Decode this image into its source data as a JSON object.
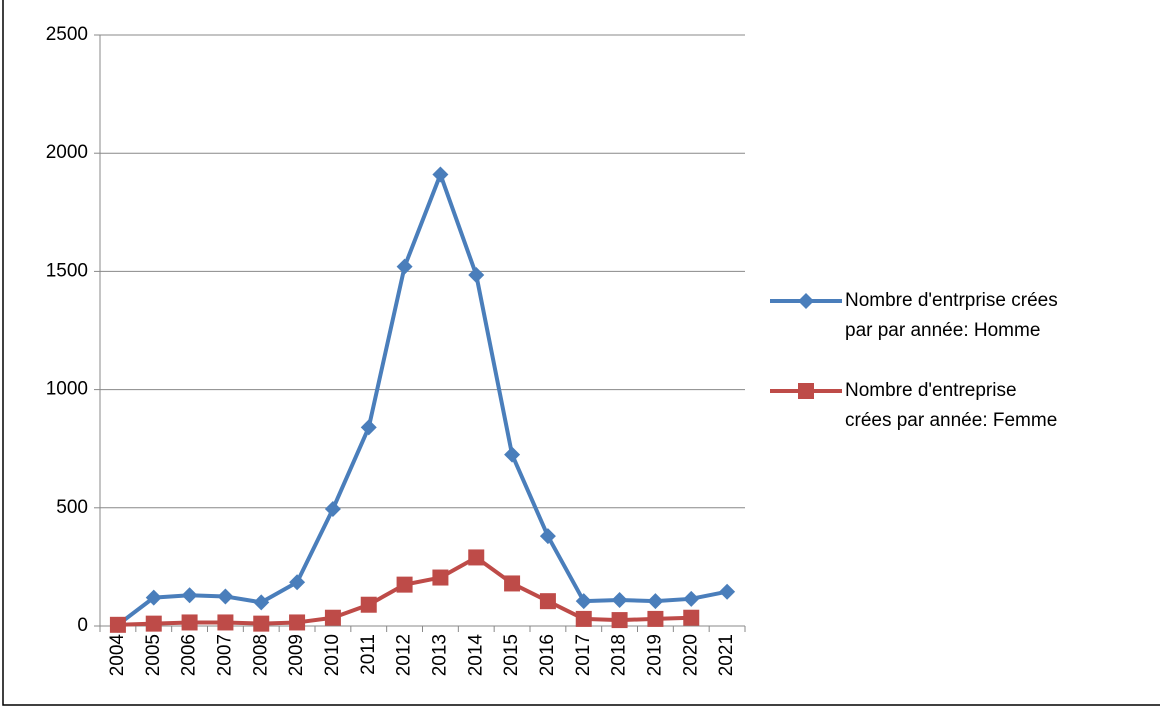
{
  "chart_data": {
    "type": "line",
    "categories": [
      "2004",
      "2005",
      "2006",
      "2007",
      "2008",
      "2009",
      "2010",
      "2011",
      "2012",
      "2013",
      "2014",
      "2015",
      "2016",
      "2017",
      "2018",
      "2019",
      "2020",
      "2021"
    ],
    "series": [
      {
        "name": "Nombre d'entrprise crées par par année: Homme",
        "color": "#4a7ebb",
        "marker": "diamond",
        "values": [
          5,
          120,
          130,
          125,
          100,
          185,
          495,
          840,
          1520,
          1910,
          1485,
          725,
          380,
          105,
          110,
          105,
          115,
          145
        ]
      },
      {
        "name": "Nombre d'entreprise crées par année: Femme",
        "color": "#be4b48",
        "marker": "square",
        "values": [
          5,
          10,
          15,
          15,
          10,
          15,
          35,
          90,
          175,
          205,
          290,
          180,
          105,
          30,
          25,
          30,
          35,
          null
        ]
      }
    ],
    "ylim": [
      0,
      2500
    ],
    "yticks": [
      0,
      500,
      1000,
      1500,
      2000,
      2500
    ],
    "grid": true,
    "legend": "right"
  }
}
